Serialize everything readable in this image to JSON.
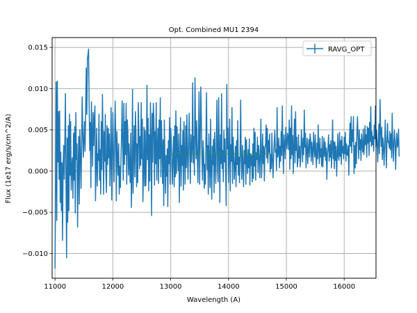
{
  "chart_data": {
    "type": "line",
    "title": "Opt. Combined MU1 2394",
    "xlabel": "Wavelength (A)",
    "ylabel": "Flux (1e17 erg/s/cm^2/A)",
    "xlim": [
      10950,
      16550
    ],
    "ylim": [
      -0.013,
      0.0162
    ],
    "xticks": [
      11000,
      12000,
      13000,
      14000,
      15000,
      16000
    ],
    "yticks": [
      -0.01,
      -0.005,
      0.0,
      0.005,
      0.01,
      0.015
    ],
    "xtick_labels": [
      "11000",
      "12000",
      "13000",
      "14000",
      "15000",
      "16000"
    ],
    "ytick_labels": [
      "−0.010",
      "−0.005",
      "0.000",
      "0.005",
      "0.010",
      "0.015"
    ],
    "grid": true,
    "legend_position": "upper right",
    "series": [
      {
        "name": "RAVG_OPT",
        "color": "#1f77b4",
        "style": "errorbar-line",
        "x_start": 11000,
        "x_step": 10,
        "values": [
          -0.0118,
          -0.0024,
          0.0108,
          -0.006,
          0.0109,
          0.0011,
          0.0072,
          -0.001,
          0.0073,
          -0.0038,
          0.0023,
          -0.0048,
          0.001,
          -0.0084,
          0.0006,
          0.0031,
          -0.001,
          0.0036,
          0.0094,
          -0.0011,
          -0.0105,
          0.004,
          -0.0062,
          0.0055,
          -0.0048,
          0.0069,
          -0.0005,
          0.006,
          -0.0023,
          0.0005,
          0.0016,
          -0.0033,
          0.0046,
          -0.0011,
          0.0054,
          -0.0051,
          0.0071,
          0.0014,
          0.0033,
          -0.0068,
          0.0005,
          0.0042,
          -0.004,
          0.005,
          0.0024,
          -0.0021,
          0.0027,
          0.009,
          0.0048,
          0.0017,
          0.0038,
          0.006,
          0.0024,
          0.0074,
          0.0125,
          0.0069,
          0.0137,
          0.0141,
          0.0148,
          0.0083,
          0.0025,
          0.0059,
          -0.002,
          0.0084,
          0.0045,
          0.0006,
          0.0071,
          0.0031,
          0.0064,
          0.0079,
          -0.0036,
          0.0007,
          0.0052,
          -0.0018,
          0.0021,
          0.0013,
          0.0069,
          -0.0011,
          0.0026,
          -0.0028,
          0.006,
          0.0002,
          0.0093,
          0.004,
          -0.0028,
          0.0048,
          0.0012,
          0.0069,
          -0.0004,
          -0.0026,
          0.0055,
          0.0008,
          0.0052,
          0.0016,
          0.0045,
          -0.0018,
          0.0017,
          0.0077,
          -0.0035,
          0.0018,
          0.0071,
          0.0023,
          -0.0013,
          0.0031,
          0.0085,
          0.004,
          -0.0036,
          0.0048,
          0.002,
          -0.0005,
          0.0033,
          -0.0028,
          0.0006,
          -0.002,
          0.0012,
          0.0043,
          0.0085,
          0.0029,
          -0.0011,
          0.0082,
          0.0008,
          0.006,
          0.002,
          0.0082,
          -0.0016,
          0.0062,
          0.0047,
          -0.0005,
          0.0033,
          0.0007,
          -0.0014,
          0.0046,
          -0.0044,
          -0.0008,
          0.0099,
          -0.0027,
          0.002,
          0.0055,
          -0.0007,
          0.0072,
          0.0046,
          -0.0019,
          0.0033,
          -0.0014,
          0.0083,
          0.0047,
          0.0003,
          0.0042,
          0.0007,
          0.0083,
          0.0015,
          0.0063,
          -0.0037,
          0.0001,
          0.0053,
          -0.0018,
          0.0049,
          -0.0018,
          0.0017,
          0.0104,
          0.0014,
          0.0064,
          -0.0024,
          0.0044,
          -0.0012,
          0.0083,
          0.0038,
          -0.0054,
          0.007,
          0.0011,
          0.0082,
          0.0063,
          -0.0017,
          0.0048,
          0.0009,
          0.0083,
          -0.0011,
          0.0029,
          0.0052,
          -0.0015,
          0.0062,
          0.0015,
          0.0089,
          -0.0007,
          0.0061,
          0.003,
          -0.0015,
          0.0038,
          -0.0042,
          0.0062,
          0.0015,
          -0.0027,
          0.0019,
          -0.0006,
          0.0027,
          -0.0043,
          0.0037,
          0.0009,
          0.0065,
          -0.0016,
          0.0052,
          0.0037,
          0.0007,
          -0.0016,
          0.0021,
          0.0042,
          -0.0019,
          0.0055,
          -0.0007,
          0.0073,
          -0.0003,
          0.0054,
          0.0021,
          0.0001,
          0.0045,
          -0.0038,
          0.0011,
          0.0065,
          -0.0018,
          0.0031,
          0.0007,
          0.0049,
          -0.0023,
          0.006,
          0.0018,
          -0.0016,
          0.0055,
          0.0004,
          0.0068,
          0.0021,
          -0.001,
          0.0034,
          0.007,
          0.0023,
          -0.0015,
          0.0044,
          0.0011,
          0.0027,
          0.0107,
          0.001,
          0.0042,
          -0.0005,
          0.0113,
          0.0051,
          0.0015,
          0.0061,
          0.0022,
          -0.0014,
          0.0033,
          0.0096,
          -0.0016,
          0.0036,
          0.0102,
          0.0063,
          0.0018,
          -0.0011,
          0.0037,
          0.0021,
          -0.0021,
          0.0008,
          -0.0016,
          0.004,
          0.0095,
          0.0002,
          0.0031,
          -0.0028,
          0.0045,
          0.0009,
          -0.002,
          0.0063,
          0.0004,
          -0.0034,
          0.003,
          0.0008,
          0.0039,
          -0.0026,
          0.0047,
          0.0014,
          -0.0015,
          0.0038,
          0.0086,
          0.0001,
          -0.0013,
          0.0089,
          0.0025,
          -0.0038,
          0.0044,
          0.0009,
          0.0094,
          0.0003,
          0.0025,
          -0.0013,
          0.0049,
          0.0011,
          0.0039,
          0.0,
          -0.0042,
          0.0105,
          0.0027,
          0.0052,
          -0.0014,
          0.0022,
          0.0063,
          -0.0024,
          0.0032,
          0.0012,
          0.0077,
          -0.0015,
          0.0041,
          0.0019,
          -0.001,
          0.0006,
          0.003,
          -0.0019,
          0.0037,
          0.0008,
          0.0061,
          -0.0005,
          0.0017,
          -0.0014,
          0.0022,
          0.0086,
          0.0012,
          -0.001,
          0.0031,
          0.0007,
          -0.0019,
          0.0025,
          0.0009,
          0.0041,
          -0.0016,
          0.0038,
          0.0011,
          -0.0003,
          0.0026,
          0.0004,
          0.0039,
          -0.0017,
          0.0021,
          0.0007,
          0.0019,
          -0.0013,
          0.0033,
          -0.0009,
          0.0052,
          0.0006,
          0.0047,
          -0.0011,
          0.0022,
          0.0014,
          0.0041,
          -0.0002,
          0.0031,
          0.0018,
          -0.0008,
          0.0023,
          0.0063,
          -0.0008,
          0.0011,
          0.0045,
          0.0009,
          0.003,
          -0.0012,
          0.0027,
          0.0032,
          0.0056,
          0.0016,
          0.0052,
          0.001,
          0.0037,
          0.0023,
          0.0045,
          -0.0001,
          0.002,
          0.0003,
          0.0046,
          0.0015,
          -0.0008,
          0.0017,
          0.0034,
          0.0049,
          0.0023,
          0.0026,
          0.0001,
          0.0077,
          0.0017,
          0.0022,
          0.004,
          0.0004,
          0.003,
          0.0012,
          0.0048,
          0.0019,
          0.0079,
          0.0028,
          -0.0003,
          0.0044,
          0.0031,
          0.0015,
          0.0053,
          0.0036,
          0.0027,
          0.0046,
          0.0041,
          0.0026,
          0.0062,
          0.0002,
          0.0052,
          0.0015,
          0.0079,
          0.002,
          0.0043,
          -0.0003,
          0.0031,
          0.0063,
          0.001,
          0.0072,
          0.0025,
          0.0041,
          0.0005,
          0.0012,
          0.0044,
          0.0016,
          0.003,
          0.0005,
          0.0021,
          0.005,
          0.0032,
          0.0011,
          0.004,
          0.002,
          0.0074,
          0.0029,
          0.0046,
          0.0004,
          0.0027,
          0.004,
          0.0009,
          0.0026,
          0.0038,
          0.0017,
          0.0045,
          0.0038,
          0.0012,
          0.0035,
          0.0024,
          0.0008,
          0.0047,
          0.003,
          0.0017,
          0.0044,
          0.002,
          0.0004,
          0.0034,
          0.0015,
          0.0056,
          0.0027,
          0.0009,
          0.004,
          0.0017,
          0.0027,
          0.0006,
          0.0042,
          0.0005,
          0.0021,
          0.004,
          0.0018,
          0.0035,
          0.0013,
          0.0028,
          -0.001,
          0.0021,
          0.0028,
          0.0044,
          0.0012,
          0.0032,
          0.0017,
          0.0037,
          0.0004,
          0.0028,
          0.0062,
          0.0015,
          0.0036,
          0.0003,
          0.0035,
          0.0013,
          0.003,
          -0.0006,
          0.0019,
          0.0045,
          0.0018,
          0.0013,
          0.0047,
          0.0018,
          0.0037,
          0.0008,
          0.0042,
          0.0022,
          0.003,
          0.0015,
          0.0041,
          0.0021,
          0.0047,
          0.0012,
          0.0033,
          0.002,
          0.0019,
          0.0031,
          -0.0005,
          0.0035,
          0.0058,
          0.003,
          0.0066,
          0.0022,
          0.005,
          0.0036,
          0.0066,
          -0.0003,
          0.0031,
          0.0004,
          0.0035,
          0.0009,
          0.0048,
          0.0066,
          0.004,
          0.0015,
          0.005,
          0.0026,
          0.0038,
          0.0013,
          0.0045,
          0.0031,
          0.0023,
          0.0051,
          0.002,
          0.003,
          0.0055,
          0.0032,
          0.0044,
          0.0017,
          0.0054,
          0.0034,
          0.0052,
          0.0019,
          0.0059,
          0.0036,
          0.0078,
          0.003,
          0.0048,
          0.0032,
          0.0042,
          0.0024,
          0.0056,
          0.0039,
          0.0079,
          0.0029,
          0.005,
          0.0035,
          0.0011,
          0.0035,
          0.0057,
          0.0021,
          0.0087,
          0.0048,
          0.003,
          0.0053,
          0.0014,
          0.004,
          0.0028,
          0.0007,
          0.0034,
          0.0062,
          0.003,
          0.0004,
          0.0036,
          0.0058,
          0.0035,
          0.0036,
          0.0028,
          0.0048,
          0.0026,
          0.0045,
          0.0016,
          0.007,
          0.0033,
          0.0012,
          0.0036,
          0.005,
          0.0031,
          0.0002,
          0.0035,
          0.0046,
          0.0029,
          0.0033,
          0.0051,
          0.0018
        ]
      },
      {
        "name": "",
        "color": "#2ca02c",
        "style": "line",
        "x": [
          13000,
          14750
        ],
        "values": [
          0.0021,
          0.0021
        ]
      }
    ]
  }
}
